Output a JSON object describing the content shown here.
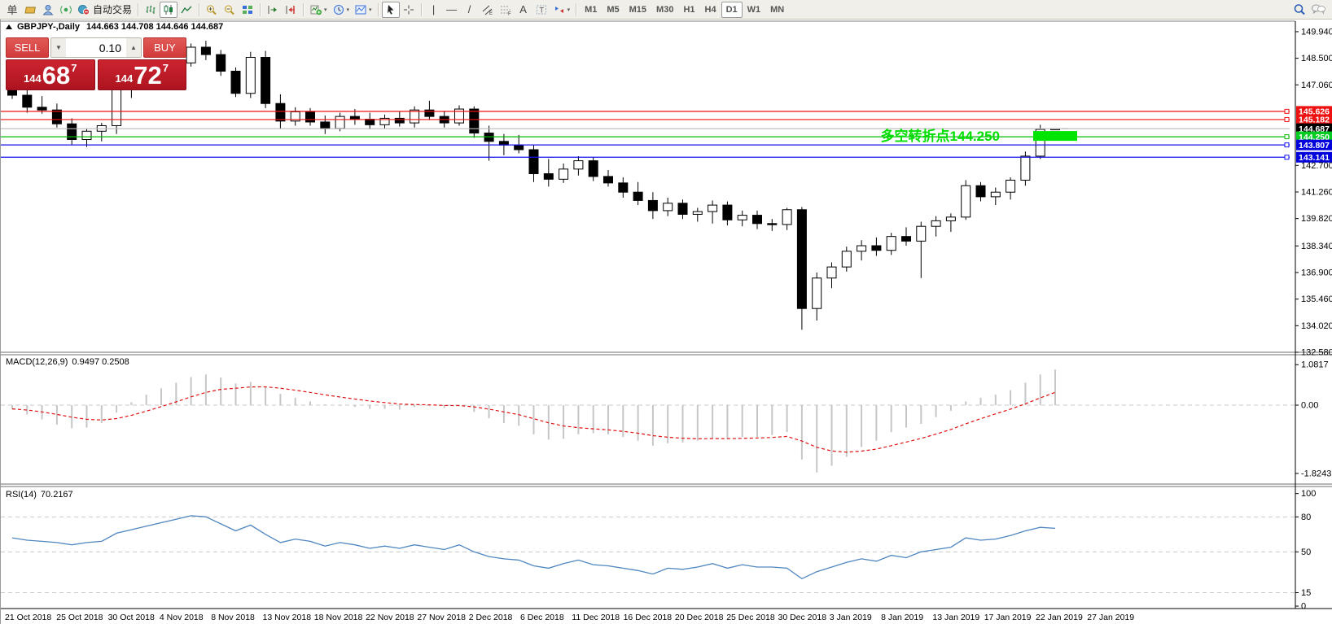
{
  "toolbar": {
    "autotrade_label": "自动交易",
    "timeframes": {
      "items": [
        "M1",
        "M5",
        "M15",
        "M30",
        "H1",
        "H4",
        "D1",
        "W1",
        "MN"
      ],
      "active": "D1"
    },
    "groups": [
      [
        {
          "name": "new-order-button",
          "kind": "text",
          "glyph": "单"
        },
        {
          "name": "chart-window-icon",
          "kind": "gold"
        },
        {
          "name": "profiles-icon",
          "kind": "profile"
        },
        {
          "name": "signals-icon",
          "kind": "signal"
        },
        {
          "name": "autotrade-button",
          "kind": "autotrade",
          "label": "自动交易"
        }
      ],
      [
        {
          "name": "bar-chart-button",
          "kind": "bars"
        },
        {
          "name": "candlestick-button",
          "kind": "candles",
          "active": true
        },
        {
          "name": "line-chart-button",
          "kind": "linechart"
        }
      ],
      [
        {
          "name": "zoom-in-button",
          "kind": "zoomin"
        },
        {
          "name": "zoom-out-button",
          "kind": "zoomout"
        },
        {
          "name": "tile-windows-button",
          "kind": "tiles"
        }
      ],
      [
        {
          "name": "chart-shift-button",
          "kind": "shift"
        },
        {
          "name": "auto-scroll-button",
          "kind": "autoscroll"
        }
      ],
      [
        {
          "name": "indicators-button",
          "kind": "indadd",
          "dropdown": true
        },
        {
          "name": "periods-button",
          "kind": "clock",
          "dropdown": true
        },
        {
          "name": "templates-button",
          "kind": "template",
          "dropdown": true
        }
      ],
      [
        {
          "name": "cursor-button",
          "kind": "cursor",
          "active": true
        },
        {
          "name": "crosshair-button",
          "kind": "crosshair"
        }
      ],
      [
        {
          "name": "vertical-line-button",
          "kind": "text",
          "glyph": "|"
        },
        {
          "name": "horizontal-line-button",
          "kind": "text",
          "glyph": "—"
        },
        {
          "name": "trendline-button",
          "kind": "text",
          "glyph": "/"
        },
        {
          "name": "channel-button",
          "kind": "channel"
        },
        {
          "name": "fibonacci-button",
          "kind": "fibo"
        },
        {
          "name": "text-button",
          "kind": "text",
          "glyph": "A"
        },
        {
          "name": "label-button",
          "kind": "label"
        },
        {
          "name": "arrows-button",
          "kind": "arrows",
          "dropdown": true
        }
      ]
    ],
    "right_icons": [
      {
        "name": "search-icon",
        "kind": "search"
      },
      {
        "name": "chat-icon",
        "kind": "chat"
      }
    ]
  },
  "trade_panel": {
    "sell_label": "SELL",
    "buy_label": "BUY",
    "volume": "0.10",
    "step_down_glyph": "▼",
    "step_up_glyph": "▲",
    "sell_small": "144",
    "sell_big": "68",
    "sell_sup": "7",
    "buy_small": "144",
    "buy_big": "72",
    "buy_sup": "7"
  },
  "chart_data": {
    "type": "candlestick",
    "title": "GBPJPY-,Daily",
    "ohlc_text": "144.663 144.708 144.646 144.687",
    "style": {
      "up_color": "#ffffff",
      "down_color": "#000000",
      "wick_color": "#000000",
      "background": "#ffffff"
    },
    "price_axis_ticks": [
      149.94,
      148.5,
      147.06,
      142.7,
      141.26,
      139.82,
      138.34,
      136.9,
      135.46,
      134.02,
      132.58
    ],
    "x_axis_labels": [
      "21 Oct 2018",
      "25 Oct 2018",
      "30 Oct 2018",
      "4 Nov 2018",
      "8 Nov 2018",
      "13 Nov 2018",
      "18 Nov 2018",
      "22 Nov 2018",
      "27 Nov 2018",
      "2 Dec 2018",
      "6 Dec 2018",
      "11 Dec 2018",
      "16 Dec 2018",
      "20 Dec 2018",
      "25 Dec 2018",
      "30 Dec 2018",
      "3 Jan 2019",
      "8 Jan 2019",
      "13 Jan 2019",
      "17 Jan 2019",
      "22 Jan 2019",
      "27 Jan 2019"
    ],
    "levels": [
      {
        "price": 145.626,
        "label": "145.626",
        "line": "#ee1111",
        "tag": "#ee1111",
        "handle": true,
        "name": "resistance-line-1"
      },
      {
        "price": 145.182,
        "label": "145.182",
        "line": "#ee1111",
        "tag": "#ee1111",
        "handle": true,
        "name": "resistance-line-2"
      },
      {
        "price": 144.687,
        "label": "144.687",
        "line": "#b9b9b9",
        "tag": "#000000",
        "handle": false,
        "name": "current-price-line"
      },
      {
        "price": 144.25,
        "label": "144.250",
        "line": "#00bb00",
        "tag": "#00cc22",
        "handle": true,
        "name": "pivot-line"
      },
      {
        "price": 143.807,
        "label": "143.807",
        "line": "#1111ee",
        "tag": "#0000dd",
        "handle": true,
        "name": "support-line-1"
      },
      {
        "price": 143.141,
        "label": "143.141",
        "line": "#1111ee",
        "tag": "#0000dd",
        "handle": true,
        "name": "support-line-2"
      }
    ],
    "annotation": {
      "text": "多空转折点144.250",
      "color": "#00dd00"
    },
    "green_box": {
      "color": "#00e400",
      "price": 144.25
    },
    "candles": [
      [
        146.9,
        147.15,
        146.3,
        146.5
      ],
      [
        146.5,
        146.8,
        145.55,
        145.85
      ],
      [
        145.85,
        146.45,
        145.5,
        145.7
      ],
      [
        145.7,
        146.05,
        144.75,
        144.95
      ],
      [
        144.95,
        145.25,
        143.8,
        144.1
      ],
      [
        144.1,
        144.7,
        143.7,
        144.55
      ],
      [
        144.55,
        145.0,
        144.0,
        144.85
      ],
      [
        144.85,
        147.25,
        144.4,
        147.1
      ],
      [
        147.1,
        147.65,
        146.35,
        147.45
      ],
      [
        147.45,
        148.35,
        146.9,
        147.15
      ],
      [
        147.15,
        147.8,
        146.85,
        147.6
      ],
      [
        147.6,
        148.4,
        147.3,
        148.25
      ],
      [
        148.25,
        149.3,
        148.05,
        149.1
      ],
      [
        149.1,
        149.45,
        148.4,
        148.7
      ],
      [
        148.7,
        148.95,
        147.55,
        147.8
      ],
      [
        147.8,
        148.0,
        146.4,
        146.6
      ],
      [
        146.6,
        148.85,
        146.35,
        148.55
      ],
      [
        148.55,
        148.9,
        145.8,
        146.05
      ],
      [
        146.05,
        146.55,
        144.7,
        145.1
      ],
      [
        145.1,
        145.85,
        144.85,
        145.6
      ],
      [
        145.6,
        145.8,
        144.85,
        145.05
      ],
      [
        145.05,
        145.4,
        144.4,
        144.7
      ],
      [
        144.7,
        145.55,
        144.55,
        145.35
      ],
      [
        145.35,
        145.75,
        144.9,
        145.2
      ],
      [
        145.2,
        145.55,
        144.65,
        144.9
      ],
      [
        144.9,
        145.45,
        144.7,
        145.25
      ],
      [
        145.25,
        145.6,
        144.8,
        145.0
      ],
      [
        145.0,
        145.9,
        144.75,
        145.7
      ],
      [
        145.7,
        146.2,
        145.15,
        145.35
      ],
      [
        145.35,
        145.65,
        144.75,
        145.0
      ],
      [
        145.0,
        145.95,
        144.85,
        145.75
      ],
      [
        145.75,
        145.9,
        144.2,
        144.45
      ],
      [
        144.45,
        144.85,
        142.95,
        144.0
      ],
      [
        144.0,
        144.4,
        143.25,
        143.8
      ],
      [
        143.8,
        144.35,
        143.35,
        143.55
      ],
      [
        143.55,
        143.8,
        141.8,
        142.25
      ],
      [
        142.25,
        143.05,
        141.55,
        141.95
      ],
      [
        141.95,
        142.8,
        141.75,
        142.5
      ],
      [
        142.5,
        143.2,
        142.15,
        142.95
      ],
      [
        142.95,
        143.15,
        141.85,
        142.1
      ],
      [
        142.1,
        142.45,
        141.55,
        141.75
      ],
      [
        141.75,
        142.05,
        140.95,
        141.25
      ],
      [
        141.25,
        141.8,
        140.55,
        140.8
      ],
      [
        140.8,
        141.25,
        139.8,
        140.25
      ],
      [
        140.25,
        140.95,
        139.95,
        140.65
      ],
      [
        140.65,
        140.85,
        139.8,
        140.05
      ],
      [
        140.05,
        140.4,
        139.65,
        140.2
      ],
      [
        140.2,
        140.8,
        139.55,
        140.55
      ],
      [
        140.55,
        140.75,
        139.45,
        139.75
      ],
      [
        139.75,
        140.25,
        139.4,
        140.0
      ],
      [
        140.0,
        140.25,
        139.25,
        139.55
      ],
      [
        139.55,
        139.8,
        139.15,
        139.5
      ],
      [
        139.5,
        140.4,
        139.2,
        140.3
      ],
      [
        140.3,
        140.45,
        133.8,
        134.95
      ],
      [
        134.95,
        136.9,
        134.3,
        136.6
      ],
      [
        136.6,
        137.45,
        136.05,
        137.2
      ],
      [
        137.2,
        138.3,
        136.95,
        138.05
      ],
      [
        138.05,
        138.65,
        137.55,
        138.35
      ],
      [
        138.35,
        138.8,
        137.8,
        138.1
      ],
      [
        138.1,
        139.05,
        137.85,
        138.85
      ],
      [
        138.85,
        139.35,
        138.35,
        138.6
      ],
      [
        138.6,
        139.65,
        136.6,
        139.4
      ],
      [
        139.4,
        139.95,
        138.85,
        139.7
      ],
      [
        139.7,
        140.1,
        139.1,
        139.9
      ],
      [
        139.9,
        141.9,
        139.75,
        141.6
      ],
      [
        141.6,
        141.8,
        140.75,
        141.0
      ],
      [
        141.0,
        141.5,
        140.55,
        141.25
      ],
      [
        141.25,
        142.05,
        140.85,
        141.9
      ],
      [
        141.9,
        143.45,
        141.6,
        143.2
      ],
      [
        143.2,
        144.9,
        143.05,
        144.65
      ],
      [
        144.663,
        144.708,
        144.646,
        144.687
      ]
    ],
    "macd": {
      "label": "MACD(12,26,9)",
      "values_text": "0.9497 0.2508",
      "axis_ticks": [
        "1.0817",
        "0.00",
        "-1.8243"
      ],
      "bar_color": "#c6c6c6",
      "signal_color": "#e01010",
      "histogram": [
        -0.1,
        -0.25,
        -0.38,
        -0.52,
        -0.62,
        -0.6,
        -0.48,
        -0.2,
        0.08,
        0.28,
        0.45,
        0.6,
        0.75,
        0.82,
        0.74,
        0.58,
        0.62,
        0.5,
        0.3,
        0.2,
        0.1,
        0.02,
        -0.02,
        -0.05,
        -0.1,
        -0.1,
        -0.12,
        -0.05,
        -0.02,
        -0.08,
        -0.02,
        -0.18,
        -0.35,
        -0.48,
        -0.55,
        -0.78,
        -0.92,
        -0.9,
        -0.78,
        -0.75,
        -0.78,
        -0.85,
        -0.95,
        -1.08,
        -1.02,
        -1.0,
        -0.95,
        -0.88,
        -0.9,
        -0.85,
        -0.85,
        -0.8,
        -0.72,
        -1.45,
        -1.8,
        -1.62,
        -1.38,
        -1.12,
        -0.95,
        -0.72,
        -0.6,
        -0.5,
        -0.32,
        -0.15,
        0.1,
        0.2,
        0.28,
        0.4,
        0.6,
        0.82,
        0.9497
      ]
    },
    "rsi": {
      "label": "RSI(14)",
      "value_text": "70.2167",
      "axis_ticks": [
        100,
        80,
        50,
        15,
        0
      ],
      "level_lines": [
        80,
        50,
        15
      ],
      "line_color": "#4f86c0",
      "values": [
        62,
        60,
        59,
        58,
        56,
        58,
        59,
        66,
        69,
        72,
        75,
        78,
        81,
        80,
        74,
        68,
        73,
        65,
        58,
        61,
        59,
        55,
        58,
        56,
        53,
        55,
        53,
        56,
        54,
        52,
        56,
        50,
        46,
        44,
        43,
        38,
        36,
        40,
        43,
        39,
        38,
        36,
        34,
        31,
        36,
        35,
        37,
        40,
        36,
        39,
        37,
        37,
        36,
        27,
        33,
        37,
        41,
        44,
        42,
        47,
        45,
        50,
        52,
        54,
        62,
        60,
        61,
        64,
        68,
        71,
        70.2
      ]
    }
  }
}
